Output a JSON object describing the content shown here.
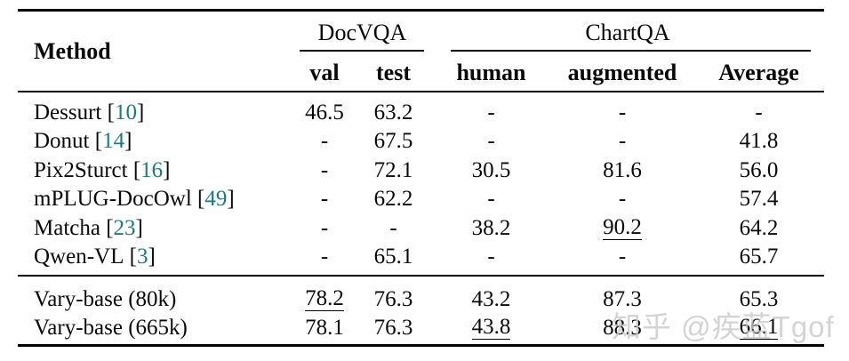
{
  "header": {
    "method": "Method",
    "groups": [
      {
        "label": "DocVQA",
        "columns": [
          "val",
          "test"
        ]
      },
      {
        "label": "ChartQA",
        "columns": [
          "human",
          "augmented",
          "Average"
        ]
      }
    ]
  },
  "cite_brackets": {
    "open": "[",
    "close": "]"
  },
  "sections": [
    {
      "rows": [
        {
          "method": "Dessurt",
          "cite": "10",
          "values": [
            {
              "t": "46.5"
            },
            {
              "t": "63.2"
            },
            {
              "t": "-"
            },
            {
              "t": "-"
            },
            {
              "t": "-"
            }
          ]
        },
        {
          "method": "Donut",
          "cite": "14",
          "values": [
            {
              "t": "-"
            },
            {
              "t": "67.5"
            },
            {
              "t": "-"
            },
            {
              "t": "-"
            },
            {
              "t": "41.8"
            }
          ]
        },
        {
          "method": "Pix2Sturct",
          "cite": "16",
          "values": [
            {
              "t": "-"
            },
            {
              "t": "72.1"
            },
            {
              "t": "30.5"
            },
            {
              "t": "81.6"
            },
            {
              "t": "56.0"
            }
          ]
        },
        {
          "method": "mPLUG-DocOwl",
          "cite": "49",
          "values": [
            {
              "t": "-"
            },
            {
              "t": "62.2"
            },
            {
              "t": "-"
            },
            {
              "t": "-"
            },
            {
              "t": "57.4"
            }
          ]
        },
        {
          "method": "Matcha",
          "cite": "23",
          "values": [
            {
              "t": "-"
            },
            {
              "t": "-"
            },
            {
              "t": "38.2"
            },
            {
              "t": "90.2",
              "underline": true
            },
            {
              "t": "64.2"
            }
          ]
        },
        {
          "method": "Qwen-VL",
          "cite": "3",
          "values": [
            {
              "t": "-"
            },
            {
              "t": "65.1"
            },
            {
              "t": "-"
            },
            {
              "t": "-"
            },
            {
              "t": "65.7"
            }
          ]
        }
      ]
    },
    {
      "rows": [
        {
          "method": "Vary-base (80k)",
          "cite": null,
          "values": [
            {
              "t": "78.2",
              "underline": true
            },
            {
              "t": "76.3"
            },
            {
              "t": "43.2"
            },
            {
              "t": "87.3"
            },
            {
              "t": "65.3"
            }
          ]
        },
        {
          "method": "Vary-base (665k)",
          "cite": null,
          "values": [
            {
              "t": "78.1"
            },
            {
              "t": "76.3"
            },
            {
              "t": "43.8",
              "underline": true
            },
            {
              "t": "88.3"
            },
            {
              "t": "66.1",
              "underline": true
            }
          ]
        }
      ]
    }
  ],
  "watermark": {
    "text": "知乎 @疾蓝Tgof"
  },
  "colors": {
    "citation": "#1b7a7e",
    "text": "#0a0a0a",
    "watermark": "#c9c9c9",
    "rule": "#000000"
  }
}
